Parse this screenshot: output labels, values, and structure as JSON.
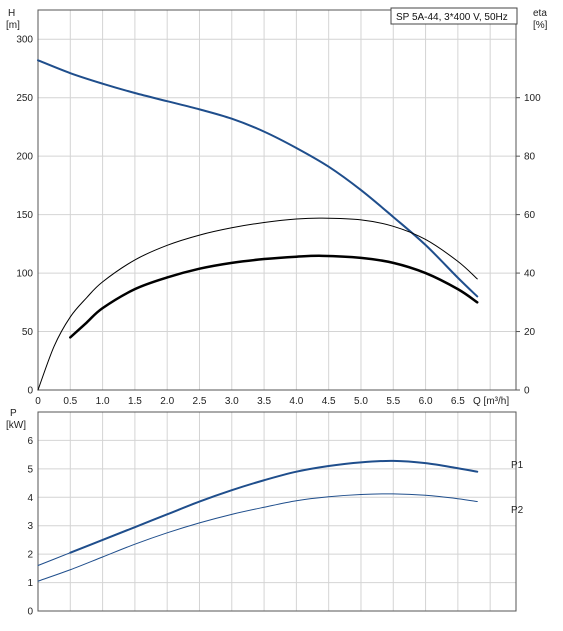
{
  "chart_data": [
    {
      "type": "line",
      "title": "SP 5A-44, 3*400 V, 50Hz",
      "xlabel": "Q [m³/h]",
      "ylabel_line1": "H",
      "ylabel_line2": "[m]",
      "y2label_line1": "eta",
      "y2label_line2": "[%]",
      "xlim": [
        0,
        7.4
      ],
      "ylim": [
        0,
        325
      ],
      "y2lim": [
        0,
        130
      ],
      "xticks": [
        "0",
        "0.5",
        "1.0",
        "1.5",
        "2.0",
        "2.5",
        "3.0",
        "3.5",
        "4.0",
        "4.5",
        "5.0",
        "5.5",
        "6.0",
        "6.5"
      ],
      "yticks": [
        "0",
        "50",
        "100",
        "150",
        "200",
        "250",
        "300"
      ],
      "y2ticks": [
        "0",
        "20",
        "40",
        "60",
        "80",
        "100"
      ],
      "grid": true,
      "series": [
        {
          "axis": "left",
          "color": "#1f4e8c",
          "width": 2,
          "points": [
            [
              0,
              282
            ],
            [
              0.5,
              271
            ],
            [
              1.0,
              262
            ],
            [
              1.5,
              254
            ],
            [
              2.0,
              247
            ],
            [
              2.5,
              240
            ],
            [
              3.0,
              232
            ],
            [
              3.5,
              221
            ],
            [
              4.0,
              207
            ],
            [
              4.5,
              191
            ],
            [
              5.0,
              171
            ],
            [
              5.5,
              148
            ],
            [
              6.0,
              124
            ],
            [
              6.5,
              96
            ],
            [
              6.8,
              80
            ]
          ]
        },
        {
          "axis": "right",
          "color": "#000000",
          "width": 1,
          "points": [
            [
              0,
              0
            ],
            [
              0.25,
              15
            ],
            [
              0.5,
              25
            ],
            [
              0.75,
              31.5
            ],
            [
              1.0,
              37
            ],
            [
              1.5,
              44.5
            ],
            [
              2.0,
              49.5
            ],
            [
              2.5,
              53
            ],
            [
              3.0,
              55.5
            ],
            [
              3.5,
              57.3
            ],
            [
              4.0,
              58.5
            ],
            [
              4.4,
              58.8
            ],
            [
              5.0,
              58.2
            ],
            [
              5.5,
              56
            ],
            [
              6.0,
              51.5
            ],
            [
              6.5,
              44
            ],
            [
              6.8,
              38
            ]
          ]
        },
        {
          "axis": "right",
          "color": "#000000",
          "width": 2.5,
          "points": [
            [
              0.5,
              18
            ],
            [
              0.75,
              23
            ],
            [
              1.0,
              28
            ],
            [
              1.5,
              34.5
            ],
            [
              2.0,
              38.5
            ],
            [
              2.5,
              41.5
            ],
            [
              3.0,
              43.5
            ],
            [
              3.5,
              44.8
            ],
            [
              4.0,
              45.6
            ],
            [
              4.4,
              45.9
            ],
            [
              5.0,
              45.2
            ],
            [
              5.5,
              43.5
            ],
            [
              6.0,
              40
            ],
            [
              6.5,
              34.5
            ],
            [
              6.8,
              30
            ]
          ]
        }
      ]
    },
    {
      "type": "line",
      "ylabel_line1": "P",
      "ylabel_line2": "[kW]",
      "xlim": [
        0,
        7.4
      ],
      "ylim": [
        0,
        7
      ],
      "yticks": [
        "0",
        "1",
        "2",
        "3",
        "4",
        "5",
        "6"
      ],
      "grid": true,
      "series": [
        {
          "name": "P1",
          "color": "#1f4e8c",
          "width": 2,
          "points": [
            [
              0.5,
              2.05
            ],
            [
              1.0,
              2.5
            ],
            [
              1.5,
              2.95
            ],
            [
              2.0,
              3.4
            ],
            [
              2.5,
              3.85
            ],
            [
              3.0,
              4.25
            ],
            [
              3.5,
              4.6
            ],
            [
              4.0,
              4.9
            ],
            [
              4.5,
              5.1
            ],
            [
              5.0,
              5.23
            ],
            [
              5.5,
              5.28
            ],
            [
              6.0,
              5.2
            ],
            [
              6.5,
              5.02
            ],
            [
              6.8,
              4.9
            ]
          ]
        },
        {
          "name": "P2",
          "color": "#1f4e8c",
          "width": 1,
          "points": [
            [
              0,
              1.05
            ],
            [
              0.5,
              1.45
            ],
            [
              1.0,
              1.9
            ],
            [
              1.5,
              2.35
            ],
            [
              2.0,
              2.75
            ],
            [
              2.5,
              3.1
            ],
            [
              3.0,
              3.4
            ],
            [
              3.5,
              3.65
            ],
            [
              4.0,
              3.88
            ],
            [
              4.5,
              4.02
            ],
            [
              5.0,
              4.1
            ],
            [
              5.5,
              4.12
            ],
            [
              6.0,
              4.07
            ],
            [
              6.5,
              3.95
            ],
            [
              6.8,
              3.85
            ]
          ]
        },
        {
          "color": "#1f4e8c",
          "width": 1,
          "points": [
            [
              0,
              1.6
            ],
            [
              0.5,
              2.05
            ]
          ]
        }
      ]
    }
  ]
}
